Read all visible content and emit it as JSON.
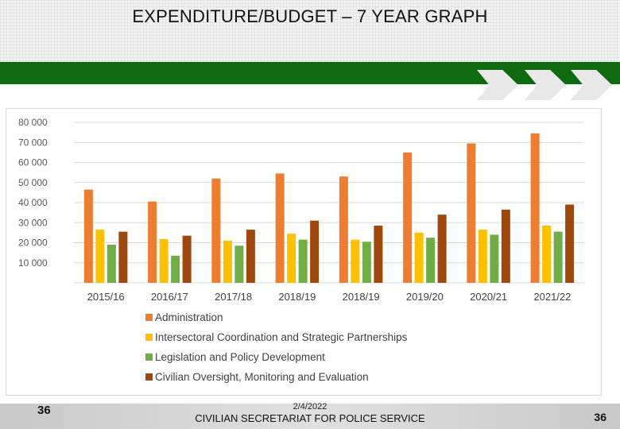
{
  "slide": {
    "title": "EXPENDITURE/BUDGET – 7 YEAR GRAPH",
    "page_number_left": "36",
    "page_number_right": "36",
    "date": "2/4/2022",
    "organization": "CIVILIAN SECRETARIAT FOR POLICE SERVICE",
    "brand_green": "#0e6a0e"
  },
  "chart_data": {
    "type": "bar",
    "title": "",
    "xlabel": "",
    "ylabel": "",
    "categories": [
      "2015/16",
      "2016/17",
      "2017/18",
      "2018/19",
      "2018/19",
      "2019/20",
      "2020/21",
      "2021/22"
    ],
    "y_ticks": [
      "10 000",
      "20 000",
      "30 000",
      "40 000",
      "50 000",
      "60 000",
      "70 000",
      "80 000"
    ],
    "ylim": [
      0,
      80000
    ],
    "grid": true,
    "legend_position": "bottom",
    "series": [
      {
        "name": "Administration",
        "color": "#ED7D31",
        "values": [
          46500,
          40500,
          52000,
          54500,
          53000,
          65000,
          69500,
          74500
        ]
      },
      {
        "name": "Intersectoral Coordination and Strategic Partnerships",
        "color": "#FFC000",
        "values": [
          26500,
          21800,
          21000,
          24500,
          21500,
          25000,
          26500,
          28500
        ]
      },
      {
        "name": "Legislation and Policy Development",
        "color": "#70AD47",
        "values": [
          19000,
          13500,
          18500,
          21500,
          20500,
          22500,
          24000,
          25500
        ]
      },
      {
        "name": "Civilian Oversight, Monitoring and Evaluation",
        "color": "#9E480E",
        "values": [
          25500,
          23500,
          26500,
          31000,
          28500,
          34000,
          36500,
          39000
        ]
      }
    ]
  }
}
